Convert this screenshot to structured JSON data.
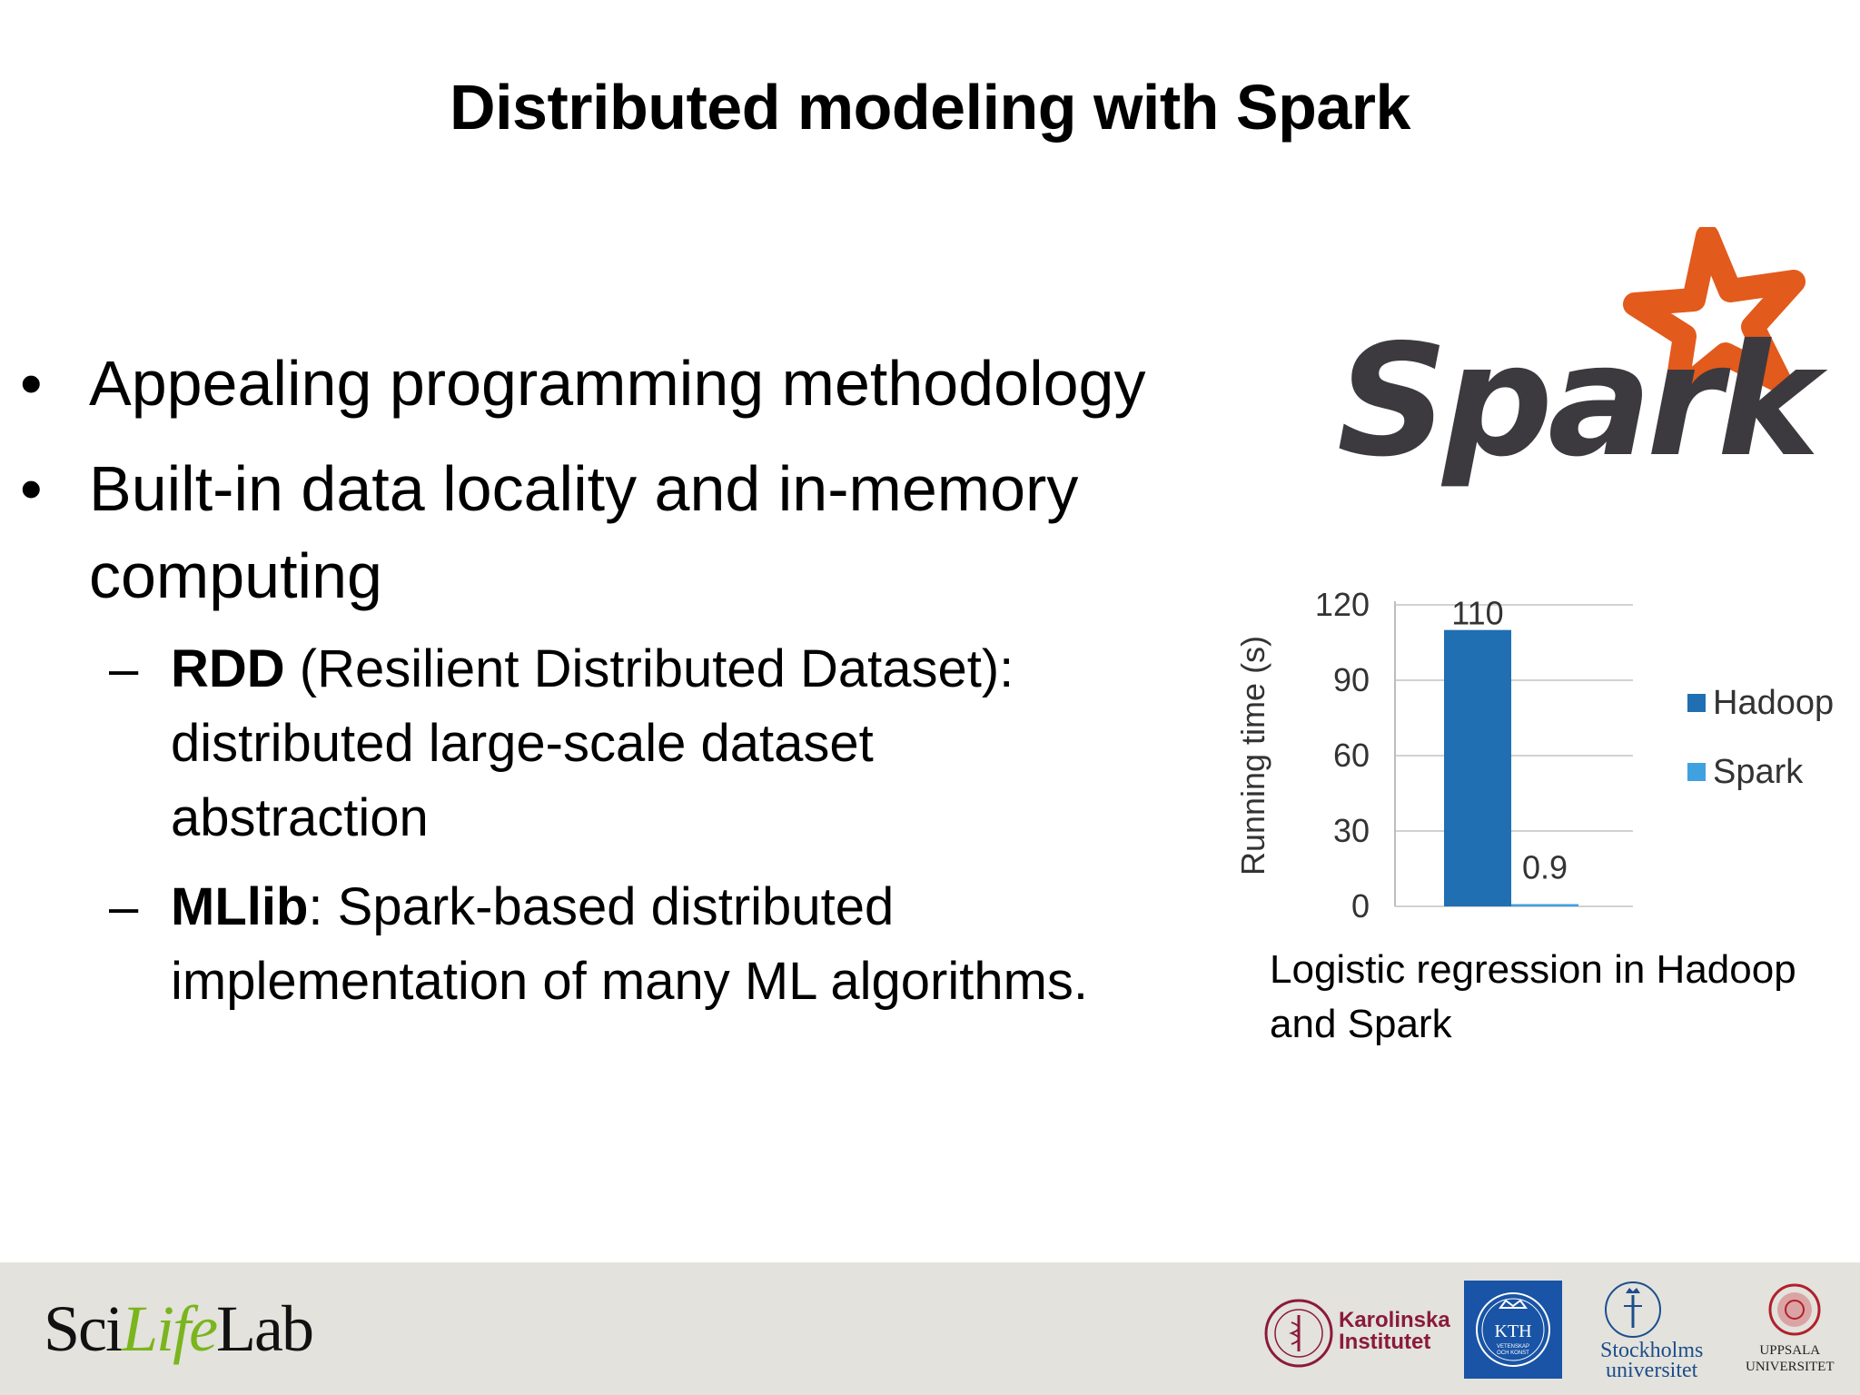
{
  "slide": {
    "title": "Distributed modeling with Spark",
    "bullets": [
      {
        "lines": [
          "Appealing programming methodology"
        ]
      },
      {
        "lines": [
          "Built-in data locality and in-memory",
          "computing"
        ]
      }
    ],
    "sub_bullets": [
      {
        "bold": "RDD",
        "rest": " (Resilient Distributed Dataset):",
        "lines": [
          "distributed large-scale dataset",
          "abstraction"
        ]
      },
      {
        "bold": "MLlib",
        "rest": ": Spark-based distributed",
        "lines": [
          "implementation of many ML algorithms."
        ]
      }
    ],
    "logo_text": "Spark",
    "caption_lines": [
      "Logistic regression in Hadoop",
      "and Spark"
    ]
  },
  "chart_data": {
    "type": "bar",
    "categories": [
      "Hadoop",
      "Spark"
    ],
    "values": [
      110,
      0.9
    ],
    "data_labels": [
      "110",
      "0.9"
    ],
    "ylabel": "Running time (s)",
    "yticks": [
      "0",
      "30",
      "60",
      "90",
      "120"
    ],
    "ylim": [
      0,
      120
    ],
    "grid": true,
    "legend": {
      "placement": "right",
      "entries": [
        "Hadoop",
        "Spark"
      ]
    },
    "colors": {
      "Hadoop": "#1f6fb2",
      "Spark": "#3fa1df"
    }
  },
  "footer": {
    "scilifelab": {
      "part1": "Sci",
      "part2": "Life",
      "part3": "Lab"
    },
    "ki": [
      "Karolinska",
      "Institutet"
    ],
    "kth": {
      "name": "KTH",
      "sub": [
        "VETENSKAP",
        "OCH KONST"
      ]
    },
    "su": [
      "Stockholms",
      "universitet"
    ],
    "uu": [
      "UPPSALA",
      "UNIVERSITET"
    ]
  }
}
